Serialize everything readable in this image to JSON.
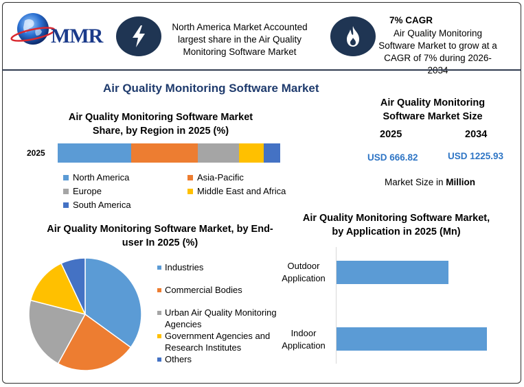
{
  "brand": {
    "logo_text": "MMR"
  },
  "header": {
    "fact1": "North America Market Accounted largest share in the Air Quality Monitoring Software Market",
    "fact2_title": "7% CAGR",
    "fact2_body": "Air Quality Monitoring Software Market to grow at a CAGR of 7% during 2026-2034",
    "icon1": "lightning-icon",
    "icon2": "flame-icon"
  },
  "main_title": "Air Quality Monitoring Software Market",
  "market_size": {
    "title": "Air Quality Monitoring Software Market Size",
    "year_a": "2025",
    "year_b": "2034",
    "value_a": "USD 666.82",
    "value_b": "USD 1225.93",
    "unit_prefix": "Market Size in ",
    "unit_bold": "Million"
  },
  "colors": {
    "north_america": "#5b9bd5",
    "asia_pacific": "#ed7d31",
    "europe": "#a5a5a5",
    "mea": "#ffc000",
    "south_america": "#4472c4",
    "bar": "#5b9bd5",
    "header_icon": "#1f3553"
  },
  "chart_data": [
    {
      "type": "bar",
      "stacked": true,
      "orientation": "horizontal",
      "title": "Air Quality Monitoring Software Market Share, by Region in 2025 (%)",
      "categories": [
        "2025"
      ],
      "series": [
        {
          "name": "North America",
          "values": [
            33
          ]
        },
        {
          "name": "Asia-Pacific",
          "values": [
            30
          ]
        },
        {
          "name": "Europe",
          "values": [
            18.5
          ]
        },
        {
          "name": "Middle East and Africa",
          "values": [
            11
          ]
        },
        {
          "name": "South America",
          "values": [
            7.5
          ]
        }
      ],
      "legend": "bottom"
    },
    {
      "type": "pie",
      "title": "Air Quality Monitoring Software Market, by End-user In 2025 (%)",
      "categories": [
        "Industries",
        "Commercial Bodies",
        "Urban Air Quality Monitoring Agencies",
        "Government Agencies and Research Institutes",
        "Others"
      ],
      "values": [
        35,
        23,
        21,
        14,
        7
      ],
      "colors": [
        "#5b9bd5",
        "#ed7d31",
        "#a5a5a5",
        "#ffc000",
        "#4472c4"
      ],
      "legend": "right"
    },
    {
      "type": "bar",
      "orientation": "horizontal",
      "title": "Air Quality Monitoring Software Market, by Application in 2025 (Mn)",
      "categories": [
        "Outdoor Application",
        "Indoor Application"
      ],
      "values": [
        270,
        362
      ],
      "xlim": [
        0,
        400
      ]
    }
  ]
}
